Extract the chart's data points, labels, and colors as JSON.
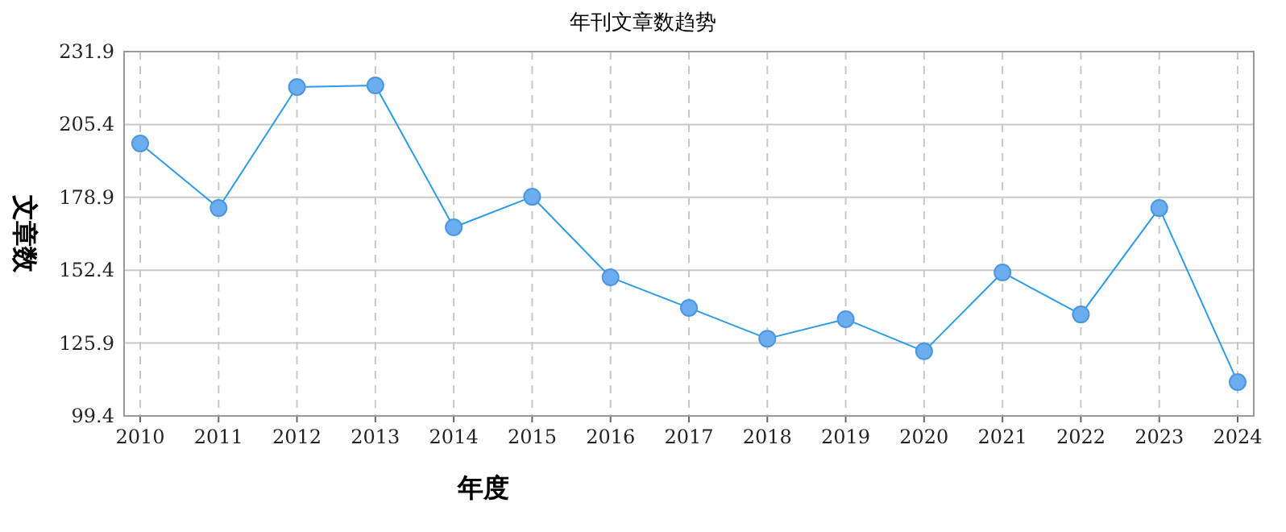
{
  "chart_data": {
    "type": "line",
    "title": "年刊文章数趋势",
    "xlabel": "年度",
    "ylabel": "文章数",
    "categories": [
      "2010",
      "2011",
      "2012",
      "2013",
      "2014",
      "2015",
      "2016",
      "2017",
      "2018",
      "2019",
      "2020",
      "2021",
      "2022",
      "2023",
      "2024"
    ],
    "series": [
      {
        "color": "#2b9be6",
        "values": [
          198.5,
          175,
          219,
          219.6,
          168,
          179.1,
          149.8,
          138.7,
          127.5,
          134.6,
          122.9,
          151.6,
          136.3,
          175,
          111.7
        ]
      }
    ],
    "ylim": [
      99.4,
      231.9
    ],
    "yticks": [
      99.4,
      125.9,
      152.4,
      178.9,
      205.4,
      231.9
    ],
    "grid": true,
    "marker": "circle",
    "line_style": "solid"
  }
}
